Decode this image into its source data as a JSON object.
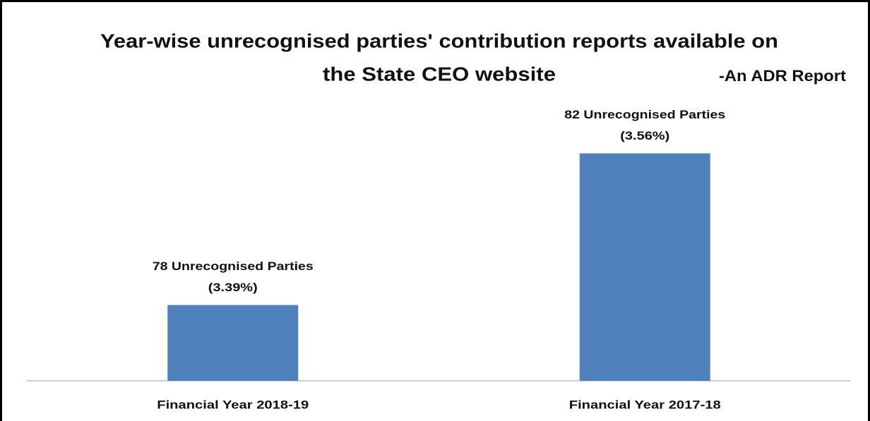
{
  "chart_data": {
    "type": "bar",
    "title": [
      "Year-wise unrecognised parties' contribution reports available on",
      "the State CEO website"
    ],
    "subtitle": "-An ADR Report",
    "categories": [
      "Financial Year 2018-19",
      "Financial Year 2017-18"
    ],
    "values": [
      78,
      82
    ],
    "value_labels": [
      "78 Unrecognised Parties",
      "82 Unrecognised Parties"
    ],
    "percent_labels": [
      "(3.39%)",
      "(3.56%)"
    ],
    "color": "#4f81bd",
    "ylim": [
      76,
      84
    ]
  }
}
